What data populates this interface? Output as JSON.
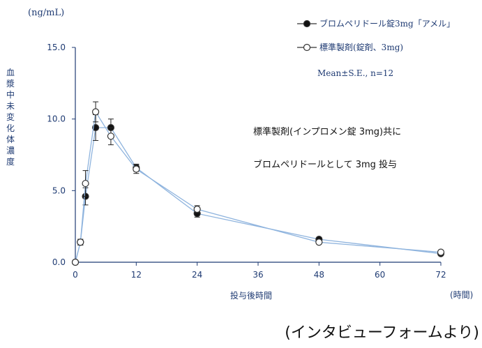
{
  "chart_data": {
    "type": "line",
    "y_unit_label": "(ng/mL)",
    "x_unit_label": "(時間)",
    "xlabel": "投与後時間",
    "ylabel": "血漿中未変化体濃度",
    "xlim": [
      0,
      72
    ],
    "ylim": [
      0,
      15
    ],
    "x_ticks": [
      "0",
      "12",
      "24",
      "36",
      "48",
      "60",
      "72"
    ],
    "y_ticks": [
      "0.0",
      "5.0",
      "10.0",
      "15.0"
    ],
    "grid": false,
    "legend_position": "top-right",
    "stats_label": "Mean±S.E., n=12",
    "annotation_lines": [
      "標準製剤(インプロメン錠 3mg)共に",
      "ブロムペリドールとして 3mg 投与"
    ],
    "source_note": "(インタビューフォームより)",
    "series": [
      {
        "name": "ブロムペリドール錠3mg「アメル」",
        "marker": "filled-circle",
        "color": "#8fb4de",
        "x": [
          0,
          1,
          2,
          4,
          7,
          12,
          24,
          48,
          72
        ],
        "y": [
          0,
          1.4,
          4.6,
          9.4,
          9.4,
          6.6,
          3.4,
          1.6,
          0.6
        ],
        "se": [
          0,
          0.2,
          0.6,
          0.9,
          0.6,
          0.25,
          0.25,
          0.1,
          0.05
        ]
      },
      {
        "name": "標準製剤(錠剤、3mg)",
        "marker": "open-circle",
        "color": "#8fb4de",
        "x": [
          0,
          1,
          2,
          4,
          7,
          12,
          24,
          48,
          72
        ],
        "y": [
          0,
          1.4,
          5.5,
          10.5,
          8.8,
          6.5,
          3.7,
          1.4,
          0.7
        ],
        "se": [
          0,
          0.2,
          0.9,
          0.7,
          0.6,
          0.3,
          0.25,
          0.1,
          0.05
        ]
      }
    ]
  }
}
